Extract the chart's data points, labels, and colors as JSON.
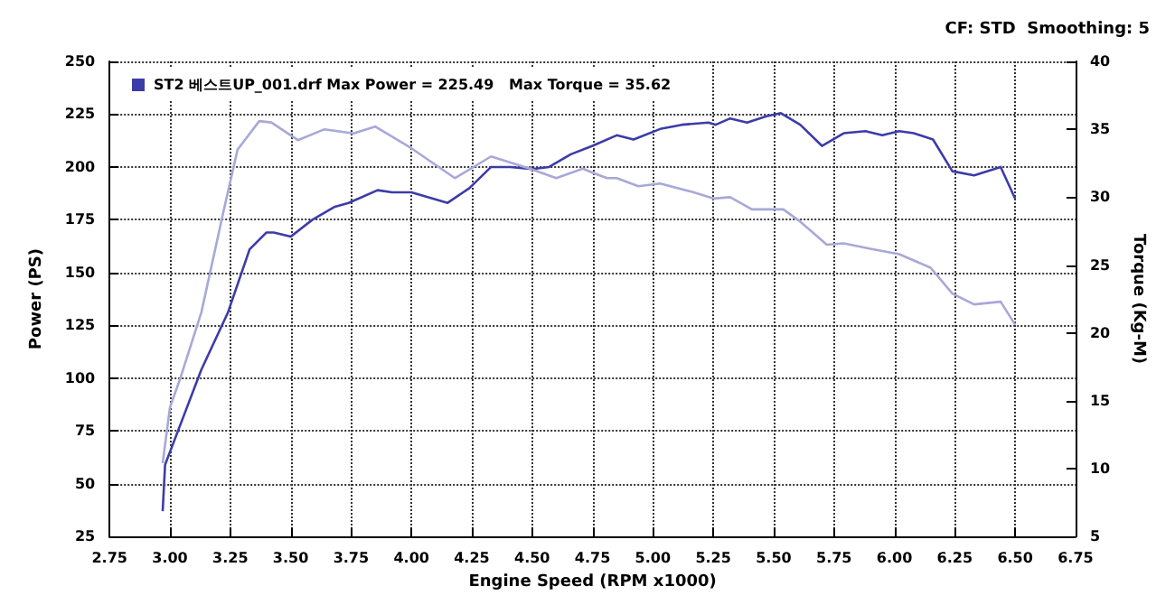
{
  "chart_data": {
    "type": "line",
    "xlabel": "Engine Speed (RPM x1000)",
    "ylabel": "Power (PS)",
    "y2label": "Torque (Kg-M)",
    "annotations": [
      "CF: STD  Smoothing: 5"
    ],
    "series": [
      {
        "name": "ST2 베스트UP_001.drf Max Power = 225.49   Max Torque = 35.62",
        "color": "#3c3ca8",
        "x": [
          2.97,
          2.98,
          3.02,
          3.13,
          3.24,
          3.33,
          3.4,
          3.43,
          3.5,
          3.59,
          3.68,
          3.74,
          3.86,
          3.92,
          4.0,
          4.15,
          4.24,
          4.33,
          4.41,
          4.5,
          4.57,
          4.66,
          4.75,
          4.85,
          4.92,
          5.03,
          5.12,
          5.23,
          5.26,
          5.32,
          5.39,
          5.47,
          5.53,
          5.61,
          5.7,
          5.79,
          5.88,
          5.95,
          6.02,
          6.08,
          6.16,
          6.24,
          6.33,
          6.44,
          6.5
        ],
        "values": [
          37,
          59,
          71,
          104,
          131,
          161,
          169,
          169,
          167,
          175,
          181,
          183,
          189,
          188,
          188,
          183,
          190,
          200,
          200,
          199,
          200,
          206,
          210,
          215,
          213,
          218,
          220,
          221,
          220,
          223,
          221,
          224,
          225.5,
          220,
          210,
          216,
          217,
          215,
          217,
          216,
          213,
          198,
          196,
          200,
          185
        ]
      },
      {
        "axis": "y2",
        "color": "#a8a8d8",
        "x": [
          2.97,
          3.0,
          3.04,
          3.13,
          3.22,
          3.28,
          3.37,
          3.42,
          3.53,
          3.64,
          3.76,
          3.85,
          4.0,
          4.18,
          4.33,
          4.49,
          4.6,
          4.71,
          4.75,
          4.81,
          4.85,
          4.94,
          5.03,
          5.16,
          5.25,
          5.32,
          5.41,
          5.54,
          5.61,
          5.72,
          5.79,
          5.9,
          6.02,
          6.15,
          6.24,
          6.33,
          6.44,
          6.5
        ],
        "values": [
          10.4,
          14.5,
          16.5,
          21.5,
          28.8,
          33.5,
          35.6,
          35.5,
          34.2,
          35.0,
          34.7,
          35.2,
          33.6,
          31.4,
          33.0,
          32.1,
          31.4,
          32.1,
          31.8,
          31.4,
          31.4,
          30.8,
          31.0,
          30.4,
          29.9,
          30.0,
          29.1,
          29.1,
          28.2,
          26.5,
          26.6,
          26.2,
          25.8,
          24.8,
          22.9,
          22.1,
          22.3,
          20.6
        ]
      }
    ],
    "xlim": [
      2.75,
      6.75
    ],
    "xticks": [
      {
        "value": 2.75,
        "label": "2.75"
      },
      {
        "value": 3,
        "label": "3.00"
      },
      {
        "value": 3.25,
        "label": "3.25"
      },
      {
        "value": 3.5,
        "label": "3.50"
      },
      {
        "value": 3.75,
        "label": "3.75"
      },
      {
        "value": 4,
        "label": "4.00"
      },
      {
        "value": 4.25,
        "label": "4.25"
      },
      {
        "value": 4.5,
        "label": "4.50"
      },
      {
        "value": 4.75,
        "label": "4.75"
      },
      {
        "value": 5,
        "label": "5.00"
      },
      {
        "value": 5.25,
        "label": "5.25"
      },
      {
        "value": 5.5,
        "label": "5.50"
      },
      {
        "value": 5.75,
        "label": "5.75"
      },
      {
        "value": 6,
        "label": "6.00"
      },
      {
        "value": 6.25,
        "label": "6.25"
      },
      {
        "value": 6.5,
        "label": "6.50"
      },
      {
        "value": 6.75,
        "label": "6.75"
      }
    ],
    "ylim": [
      25,
      250
    ],
    "yticks": [
      25,
      50,
      75,
      100,
      125,
      150,
      175,
      200,
      225,
      250
    ],
    "y2lim": [
      5,
      40
    ],
    "y2ticks": [
      5,
      10,
      15,
      20,
      25,
      30,
      35,
      40
    ],
    "grid": true,
    "legend": "top left",
    "marker": "none",
    "line_style": "solid"
  }
}
